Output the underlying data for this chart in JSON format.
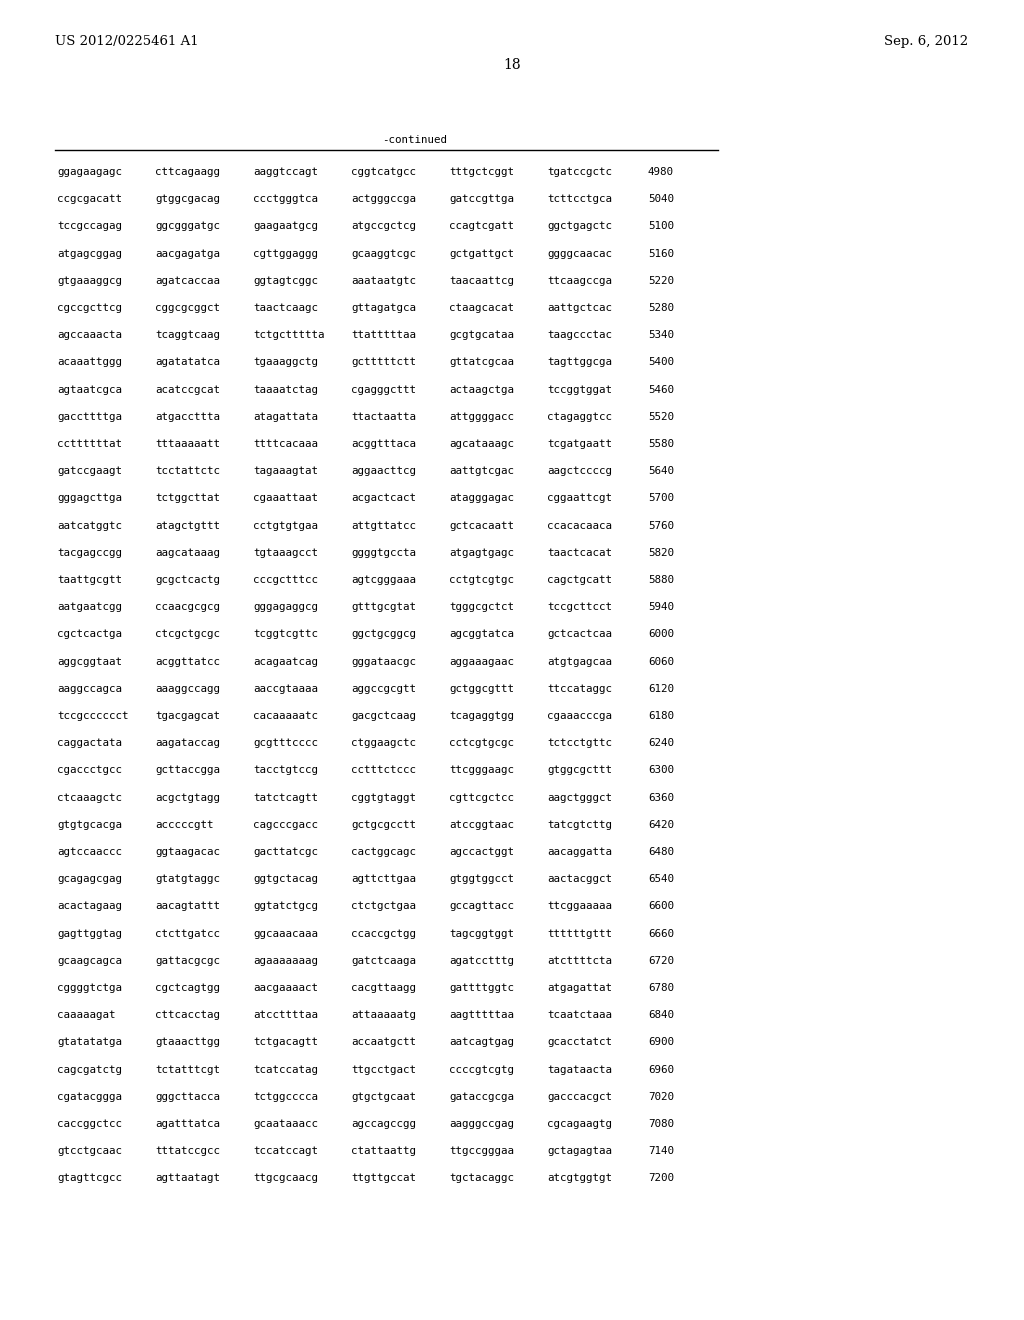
{
  "header_left": "US 2012/0225461 A1",
  "header_right": "Sep. 6, 2012",
  "page_number": "18",
  "continued_label": "-continued",
  "background_color": "#ffffff",
  "text_color": "#000000",
  "font_size_header": 9.5,
  "font_size_body": 7.8,
  "font_size_page": 10,
  "sequence_lines": [
    [
      "ggagaagagc",
      "cttcagaagg",
      "aaggtccagt",
      "cggtcatgcc",
      "tttgctcggt",
      "tgatccgctc",
      "4980"
    ],
    [
      "ccgcgacatt",
      "gtggcgacag",
      "ccctgggtca",
      "actgggccga",
      "gatccgttga",
      "tcttcctgca",
      "5040"
    ],
    [
      "tccgccagag",
      "ggcgggatgc",
      "gaagaatgcg",
      "atgccgctcg",
      "ccagtcgatt",
      "ggctgagctc",
      "5100"
    ],
    [
      "atgagcggag",
      "aacgagatga",
      "cgttggaggg",
      "gcaaggtcgc",
      "gctgattgct",
      "ggggcaacac",
      "5160"
    ],
    [
      "gtgaaaggcg",
      "agatcaccaa",
      "ggtagtcggc",
      "aaataatgtc",
      "taacaattcg",
      "ttcaagccga",
      "5220"
    ],
    [
      "cgccgcttcg",
      "cggcgcggct",
      "taactcaagc",
      "gttagatgca",
      "ctaagcacat",
      "aattgctcac",
      "5280"
    ],
    [
      "agccaaacta",
      "tcaggtcaag",
      "tctgcttttta",
      "ttatttttaa",
      "gcgtgcataa",
      "taagccctac",
      "5340"
    ],
    [
      "acaaattggg",
      "agatatatca",
      "tgaaaggctg",
      "gctttttctt",
      "gttatcgcaa",
      "tagttggcga",
      "5400"
    ],
    [
      "agtaatcgca",
      "acatccgcat",
      "taaaatctag",
      "cgagggcttt",
      "actaagctga",
      "tccggtggat",
      "5460"
    ],
    [
      "gaccttttga",
      "atgaccttta",
      "atagattata",
      "ttactaatta",
      "attggggacc",
      "ctagaggtcc",
      "5520"
    ],
    [
      "ccttttttat",
      "tttaaaaatt",
      "ttttcacaaa",
      "acggtttaca",
      "agcataaagc",
      "tcgatgaatt",
      "5580"
    ],
    [
      "gatccgaagt",
      "tcctattctc",
      "tagaaagtat",
      "aggaacttcg",
      "aattgtcgac",
      "aagctccccg",
      "5640"
    ],
    [
      "gggagcttga",
      "tctggcttat",
      "cgaaattaat",
      "acgactcact",
      "atagggagac",
      "cggaattcgt",
      "5700"
    ],
    [
      "aatcatggtc",
      "atagctgttt",
      "cctgtgtgaa",
      "attgttatcc",
      "gctcacaatt",
      "ccacacaaca",
      "5760"
    ],
    [
      "tacgagccgg",
      "aagcataaag",
      "tgtaaagcct",
      "ggggtgccta",
      "atgagtgagc",
      "taactcacat",
      "5820"
    ],
    [
      "taattgcgtt",
      "gcgctcactg",
      "cccgctttcc",
      "agtcgggaaa",
      "cctgtcgtgc",
      "cagctgcatt",
      "5880"
    ],
    [
      "aatgaatcgg",
      "ccaacgcgcg",
      "gggagaggcg",
      "gtttgcgtat",
      "tgggcgctct",
      "tccgcttcct",
      "5940"
    ],
    [
      "cgctcactga",
      "ctcgctgcgc",
      "tcggtcgttc",
      "ggctgcggcg",
      "agcggtatca",
      "gctcactcaa",
      "6000"
    ],
    [
      "aggcggtaat",
      "acggttatcc",
      "acagaatcag",
      "gggataacgc",
      "aggaaagaac",
      "atgtgagcaa",
      "6060"
    ],
    [
      "aaggccagca",
      "aaaggccagg",
      "aaccgtaaaa",
      "aggccgcgtt",
      "gctggcgttt",
      "ttccataggc",
      "6120"
    ],
    [
      "tccgcccccct",
      "tgacgagcat",
      "cacaaaaatc",
      "gacgctcaag",
      "tcagaggtgg",
      "cgaaacccga",
      "6180"
    ],
    [
      "caggactata",
      "aagataccag",
      "gcgtttcccc",
      "ctggaagctc",
      "cctcgtgcgc",
      "tctcctgttc",
      "6240"
    ],
    [
      "cgaccctgcc",
      "gcttaccgga",
      "tacctgtccg",
      "cctttctccc",
      "ttcgggaagc",
      "gtggcgcttt",
      "6300"
    ],
    [
      "ctcaaagctc",
      "acgctgtagg",
      "tatctcagtt",
      "cggtgtaggt",
      "cgttcgctcc",
      "aagctgggct",
      "6360"
    ],
    [
      "gtgtgcacga",
      "acccccgtt",
      "cagcccgacc",
      "gctgcgcctt",
      "atccggtaac",
      "tatcgtcttg",
      "6420"
    ],
    [
      "agtccaaccc",
      "ggtaagacac",
      "gacttatcgc",
      "cactggcagc",
      "agccactggt",
      "aacaggatta",
      "6480"
    ],
    [
      "gcagagcgag",
      "gtatgtaggc",
      "ggtgctacag",
      "agttcttgaa",
      "gtggtggcct",
      "aactacggct",
      "6540"
    ],
    [
      "acactagaag",
      "aacagtattt",
      "ggtatctgcg",
      "ctctgctgaa",
      "gccagttacc",
      "ttcggaaaaa",
      "6600"
    ],
    [
      "gagttggtag",
      "ctcttgatcc",
      "ggcaaacaaa",
      "ccaccgctgg",
      "tagcggtggt",
      "ttttttgttt",
      "6660"
    ],
    [
      "gcaagcagca",
      "gattacgcgc",
      "agaaaaaaag",
      "gatctcaaga",
      "agatcctttg",
      "atcttttcta",
      "6720"
    ],
    [
      "cggggtctga",
      "cgctcagtgg",
      "aacgaaaact",
      "cacgttaagg",
      "gattttggtc",
      "atgagattat",
      "6780"
    ],
    [
      "caaaaagat",
      "cttcacctag",
      "atccttttaa",
      "attaaaaatg",
      "aagtttttaa",
      "tcaatctaaa",
      "6840"
    ],
    [
      "gtatatatga",
      "gtaaacttgg",
      "tctgacagtt",
      "accaatgctt",
      "aatcagtgag",
      "gcacctatct",
      "6900"
    ],
    [
      "cagcgatctg",
      "tctatttcgt",
      "tcatccatag",
      "ttgcctgact",
      "ccccgtcgtg",
      "tagataacta",
      "6960"
    ],
    [
      "cgatacggga",
      "gggcttacca",
      "tctggcccca",
      "gtgctgcaat",
      "gataccgcga",
      "gacccacgct",
      "7020"
    ],
    [
      "caccggctcc",
      "agatttatca",
      "gcaataaacc",
      "agccagccgg",
      "aagggccgag",
      "cgcagaagtg",
      "7080"
    ],
    [
      "gtcctgcaac",
      "tttatccgcc",
      "tccatccagt",
      "ctattaattg",
      "ttgccgggaa",
      "gctagagtaa",
      "7140"
    ],
    [
      "gtagttcgcc",
      "agttaatagt",
      "ttgcgcaacg",
      "ttgttgccat",
      "tgctacaggc",
      "atcgtggtgt",
      "7200"
    ]
  ]
}
